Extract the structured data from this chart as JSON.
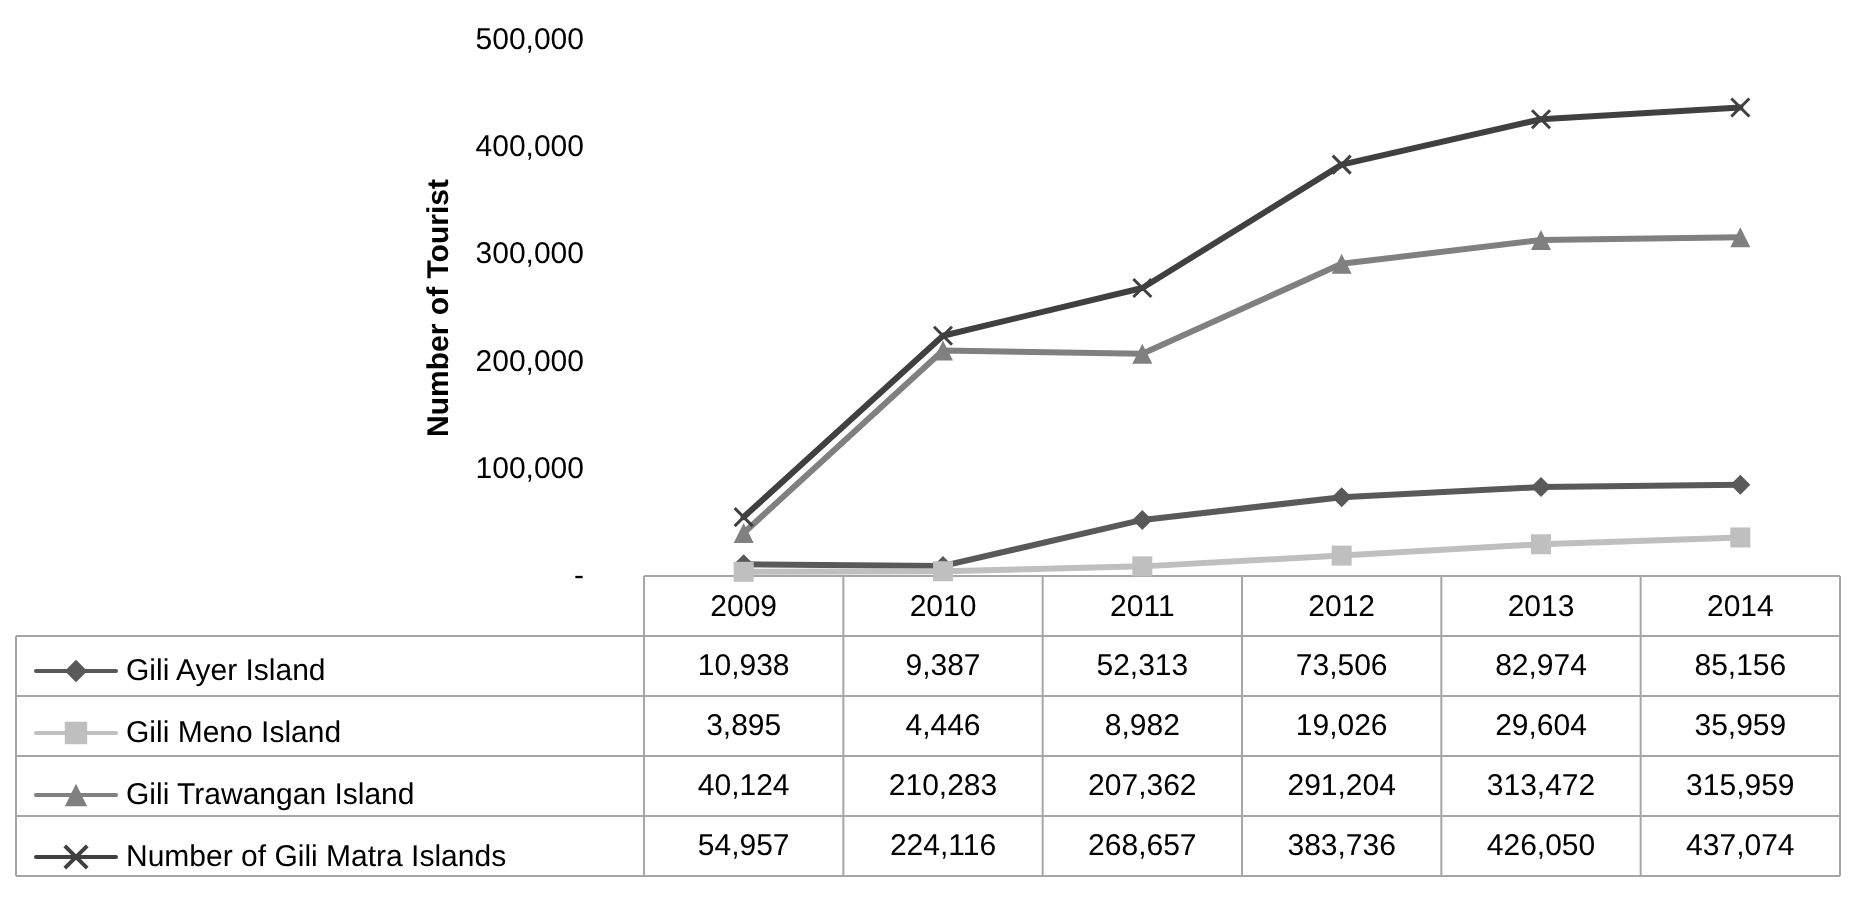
{
  "chart_data": {
    "type": "line",
    "ylabel": "Number of Tourist",
    "categories": [
      "2009",
      "2010",
      "2011",
      "2012",
      "2013",
      "2014"
    ],
    "series": [
      {
        "name": "Gili Ayer Island",
        "color": "#595959",
        "marker": "diamond",
        "values": [
          10938,
          9387,
          52313,
          73506,
          82974,
          85156
        ],
        "value_labels": [
          "10,938",
          "9,387",
          "52,313",
          "73,506",
          "82,974",
          "85,156"
        ]
      },
      {
        "name": "Gili Meno Island",
        "color": "#bfbfbf",
        "marker": "square",
        "values": [
          3895,
          4446,
          8982,
          19026,
          29604,
          35959
        ],
        "value_labels": [
          "3,895",
          "4,446",
          "8,982",
          "19,026",
          "29,604",
          "35,959"
        ]
      },
      {
        "name": "Gili Trawangan Island",
        "color": "#808080",
        "marker": "triangle",
        "values": [
          40124,
          210283,
          207362,
          291204,
          313472,
          315959
        ],
        "value_labels": [
          "40,124",
          "210,283",
          "207,362",
          "291,204",
          "313,472",
          "315,959"
        ]
      },
      {
        "name": "Number of Gili Matra Islands",
        "color": "#404040",
        "marker": "cross",
        "values": [
          54957,
          224116,
          268657,
          383736,
          426050,
          437074
        ],
        "value_labels": [
          "54,957",
          "224,116",
          "268,657",
          "383,736",
          "426,050",
          "437,074"
        ]
      }
    ],
    "ylim": [
      0,
      500000
    ],
    "yticks": [
      {
        "value": 0,
        "label": "-"
      },
      {
        "value": 100000,
        "label": "100,000"
      },
      {
        "value": 200000,
        "label": "200,000"
      },
      {
        "value": 300000,
        "label": "300,000"
      },
      {
        "value": 400000,
        "label": "400,000"
      },
      {
        "value": 500000,
        "label": "500,000"
      }
    ],
    "grid": false,
    "legend": "bottom",
    "line_style": "solid"
  }
}
